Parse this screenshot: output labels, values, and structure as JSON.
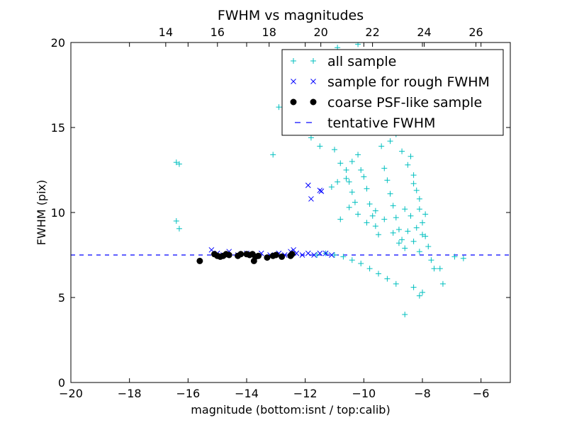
{
  "chart_data": {
    "type": "scatter",
    "title": "FWHM vs magnitudes",
    "xlabel": "magnitude (bottom:isnt / top:calib)",
    "ylabel": "FWHM (pix)",
    "xlim": [
      -20,
      -5
    ],
    "ylim": [
      0,
      20
    ],
    "x_ticks": [
      -20,
      -18,
      -16,
      -14,
      -12,
      -10,
      -8,
      -6
    ],
    "x_tick_labels": [
      "−20",
      "−18",
      "−16",
      "−14",
      "−12",
      "−10",
      "−8",
      "−6"
    ],
    "y_ticks": [
      0,
      5,
      10,
      15,
      20
    ],
    "y_tick_labels": [
      "0",
      "5",
      "10",
      "15",
      "20"
    ],
    "top_axis": {
      "xlim": [
        10.33,
        27.33
      ],
      "ticks": [
        14,
        16,
        18,
        20,
        22,
        24,
        26
      ],
      "tick_labels": [
        "14",
        "16",
        "18",
        "20",
        "22",
        "24",
        "26"
      ]
    },
    "grid": false,
    "legend_position": "top-right",
    "tentative_fwhm": 7.5,
    "series": [
      {
        "name": "all sample",
        "marker": "plus",
        "color": "#00bfbf",
        "points": [
          [
            -16.4,
            12.95
          ],
          [
            -16.3,
            12.85
          ],
          [
            -16.4,
            9.5
          ],
          [
            -16.3,
            9.05
          ],
          [
            -13.1,
            13.4
          ],
          [
            -12.9,
            16.2
          ],
          [
            -12.2,
            16.3
          ],
          [
            -11.6,
            16.9
          ],
          [
            -11.3,
            17.7
          ],
          [
            -10.9,
            19.7
          ],
          [
            -10.2,
            19.9
          ],
          [
            -11.8,
            14.4
          ],
          [
            -11.5,
            13.9
          ],
          [
            -11.2,
            15.0
          ],
          [
            -11.0,
            13.7
          ],
          [
            -10.8,
            12.9
          ],
          [
            -10.6,
            12.5
          ],
          [
            -10.5,
            11.8
          ],
          [
            -10.4,
            11.2
          ],
          [
            -10.3,
            10.6
          ],
          [
            -10.2,
            13.4
          ],
          [
            -10.0,
            12.1
          ],
          [
            -9.9,
            11.4
          ],
          [
            -9.8,
            10.5
          ],
          [
            -9.7,
            9.8
          ],
          [
            -9.6,
            9.2
          ],
          [
            -9.5,
            8.7
          ],
          [
            -9.4,
            13.9
          ],
          [
            -9.3,
            12.6
          ],
          [
            -9.2,
            11.9
          ],
          [
            -9.1,
            11.1
          ],
          [
            -9.0,
            10.4
          ],
          [
            -8.9,
            9.7
          ],
          [
            -8.8,
            9.0
          ],
          [
            -8.7,
            8.4
          ],
          [
            -8.6,
            7.9
          ],
          [
            -8.5,
            14.7
          ],
          [
            -8.4,
            13.3
          ],
          [
            -8.3,
            12.2
          ],
          [
            -8.2,
            11.3
          ],
          [
            -8.1,
            10.2
          ],
          [
            -8.0,
            9.4
          ],
          [
            -7.9,
            8.6
          ],
          [
            -7.8,
            8.0
          ],
          [
            -7.7,
            7.2
          ],
          [
            -7.6,
            6.7
          ],
          [
            -7.4,
            6.7
          ],
          [
            -6.9,
            7.4
          ],
          [
            -6.6,
            7.3
          ],
          [
            -7.3,
            5.8
          ],
          [
            -8.1,
            5.1
          ],
          [
            -8.0,
            5.3
          ],
          [
            -8.3,
            5.6
          ],
          [
            -8.6,
            4.0
          ],
          [
            -8.9,
            5.8
          ],
          [
            -9.2,
            6.1
          ],
          [
            -9.5,
            6.4
          ],
          [
            -9.8,
            6.7
          ],
          [
            -10.1,
            7.0
          ],
          [
            -10.4,
            7.2
          ],
          [
            -10.7,
            7.4
          ],
          [
            -11.0,
            7.5
          ],
          [
            -11.3,
            7.6
          ],
          [
            -11.6,
            7.5
          ],
          [
            -8.8,
            15.7
          ],
          [
            -8.6,
            16.4
          ],
          [
            -8.4,
            15.9
          ],
          [
            -8.9,
            14.6
          ],
          [
            -9.1,
            14.2
          ],
          [
            -8.7,
            13.6
          ],
          [
            -8.5,
            12.8
          ],
          [
            -8.3,
            11.7
          ],
          [
            -8.1,
            10.8
          ],
          [
            -7.9,
            9.9
          ],
          [
            -8.6,
            10.2
          ],
          [
            -8.4,
            9.8
          ],
          [
            -8.2,
            9.1
          ],
          [
            -8.0,
            8.7
          ],
          [
            -8.5,
            8.9
          ],
          [
            -8.3,
            8.3
          ],
          [
            -8.1,
            7.7
          ],
          [
            -8.8,
            8.2
          ],
          [
            -9.0,
            8.8
          ],
          [
            -9.3,
            9.6
          ],
          [
            -9.6,
            10.1
          ],
          [
            -9.9,
            9.4
          ],
          [
            -10.2,
            9.9
          ],
          [
            -10.5,
            10.3
          ],
          [
            -10.8,
            9.6
          ],
          [
            -11.1,
            11.5
          ],
          [
            -10.9,
            11.8
          ],
          [
            -10.6,
            12.0
          ],
          [
            -10.4,
            13.0
          ],
          [
            -10.1,
            12.5
          ]
        ]
      },
      {
        "name": "sample for rough FWHM",
        "marker": "x",
        "color": "#0000ff",
        "points": [
          [
            -15.2,
            7.8
          ],
          [
            -15.0,
            7.6
          ],
          [
            -14.8,
            7.5
          ],
          [
            -14.6,
            7.7
          ],
          [
            -14.3,
            7.5
          ],
          [
            -14.0,
            7.6
          ],
          [
            -13.8,
            7.5
          ],
          [
            -13.5,
            7.6
          ],
          [
            -13.2,
            7.5
          ],
          [
            -12.9,
            7.6
          ],
          [
            -12.7,
            7.5
          ],
          [
            -12.5,
            7.7
          ],
          [
            -12.3,
            7.6
          ],
          [
            -12.1,
            7.5
          ],
          [
            -11.9,
            7.6
          ],
          [
            -11.7,
            7.5
          ],
          [
            -11.5,
            7.6
          ],
          [
            -11.3,
            7.6
          ],
          [
            -11.1,
            7.5
          ],
          [
            -12.4,
            7.8
          ],
          [
            -11.9,
            11.6
          ],
          [
            -11.8,
            10.8
          ],
          [
            -11.5,
            11.3
          ],
          [
            -11.45,
            11.25
          ]
        ]
      },
      {
        "name": "coarse PSF-like sample",
        "marker": "circle",
        "color": "#000000",
        "points": [
          [
            -15.6,
            7.15
          ],
          [
            -15.1,
            7.55
          ],
          [
            -15.0,
            7.45
          ],
          [
            -14.9,
            7.4
          ],
          [
            -14.8,
            7.45
          ],
          [
            -14.7,
            7.55
          ],
          [
            -14.6,
            7.5
          ],
          [
            -14.3,
            7.45
          ],
          [
            -14.2,
            7.55
          ],
          [
            -14.0,
            7.55
          ],
          [
            -13.9,
            7.5
          ],
          [
            -13.8,
            7.55
          ],
          [
            -13.75,
            7.15
          ],
          [
            -13.7,
            7.4
          ],
          [
            -13.6,
            7.45
          ],
          [
            -13.3,
            7.35
          ],
          [
            -13.1,
            7.45
          ],
          [
            -13.0,
            7.5
          ],
          [
            -12.8,
            7.4
          ],
          [
            -12.5,
            7.45
          ],
          [
            -12.45,
            7.55
          ]
        ]
      },
      {
        "name": "tentative FWHM",
        "marker": "dashed-line",
        "color": "#0000ff"
      }
    ]
  }
}
